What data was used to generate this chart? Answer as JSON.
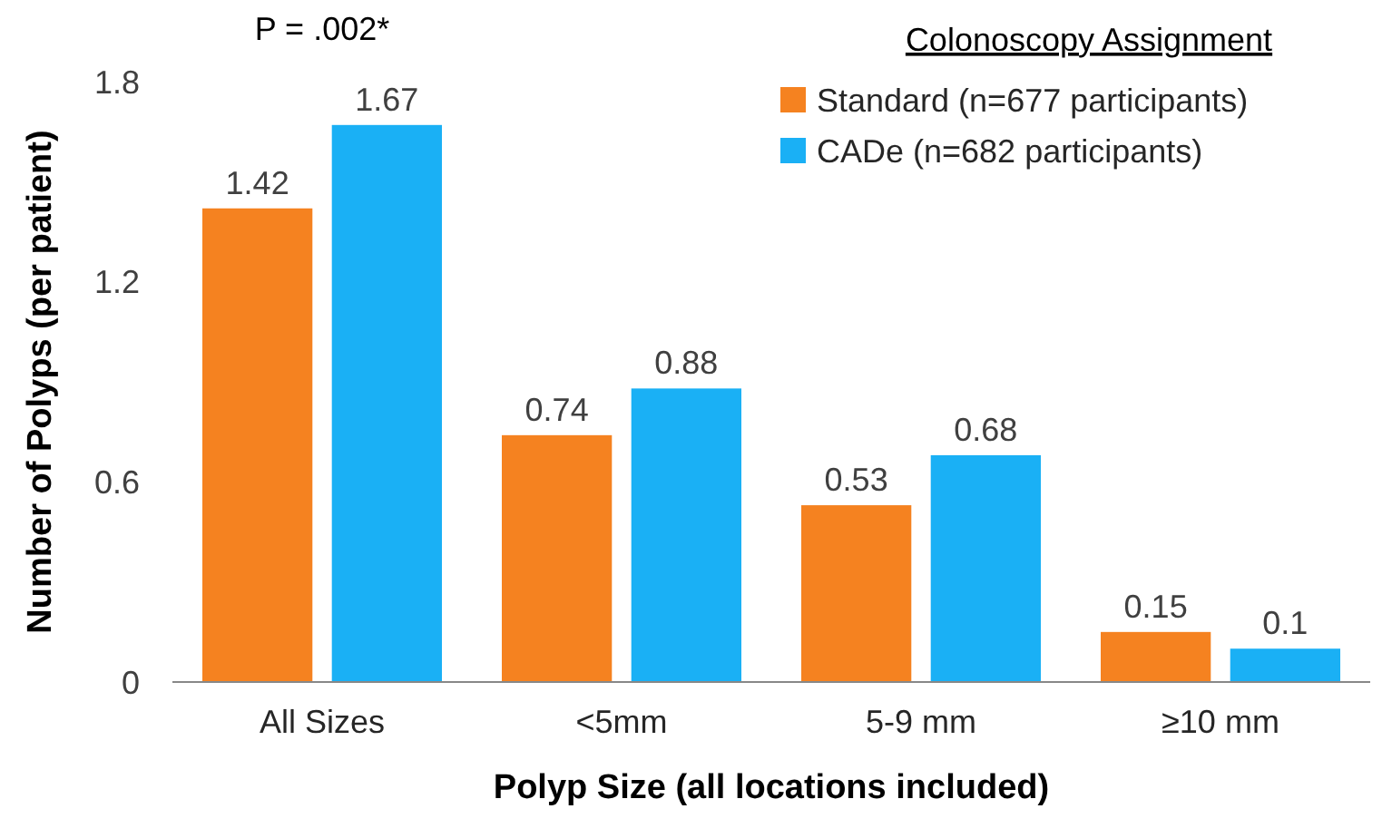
{
  "chart_data": {
    "type": "bar",
    "xlabel": "Polyp Size (all locations included)",
    "ylabel": "Number of Polyps (per patient)",
    "legend_title": "Colonoscopy Assignment",
    "categories": [
      "All Sizes",
      "<5mm",
      "5-9 mm",
      "≥10 mm"
    ],
    "series": [
      {
        "name": "Standard (n=677 participants)",
        "color": "#f58220",
        "values": [
          1.42,
          0.74,
          0.53,
          0.15
        ]
      },
      {
        "name": "CADe (n=682 participants)",
        "color": "#1ab0f5",
        "values": [
          1.67,
          0.88,
          0.68,
          0.1
        ]
      }
    ],
    "ylim": [
      0,
      1.8
    ],
    "yticks": [
      0,
      0.6,
      1.2,
      1.8
    ],
    "legend": "top right",
    "data_labels": true,
    "annotations": [
      "P = .002*"
    ]
  }
}
